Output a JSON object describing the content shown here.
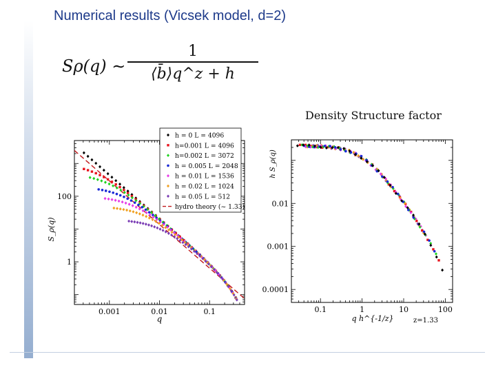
{
  "slide": {
    "title": "Numerical results (Vicsek model, d=2)",
    "formula": {
      "lhs": "Sρ(q) ∼",
      "numerator": "1",
      "denominator": "⟨b̄⟩q^z + h"
    }
  },
  "colors": {
    "title": "#1d3a8a",
    "theory_line": "#c0181a"
  },
  "chart_data": [
    {
      "type": "scatter",
      "title": "",
      "xlabel": "q",
      "ylabel": "S_ρ(q)",
      "xscale": "log",
      "yscale": "log",
      "xlim": [
        0.0002,
        0.5
      ],
      "ylim": [
        0.05,
        5000
      ],
      "xticks": [
        {
          "v": 0.001,
          "label": "0.001"
        },
        {
          "v": 0.01,
          "label": "0.01"
        },
        {
          "v": 0.1,
          "label": "0.1"
        }
      ],
      "yticks": [
        {
          "v": 1,
          "label": "1"
        },
        {
          "v": 100,
          "label": "100"
        }
      ],
      "legend_position": "top-right",
      "series": [
        {
          "name": "h = 0   L = 4096",
          "color": "#000000",
          "h": 0,
          "qmin": 0.00031
        },
        {
          "name": "h=0.001  L = 4096",
          "color": "#e8141e",
          "h": 0.001,
          "qmin": 0.00031
        },
        {
          "name": "h=0.002  L = 3072",
          "color": "#1ed21e",
          "h": 0.002,
          "qmin": 0.00041
        },
        {
          "name": "h = 0.005  L = 2048",
          "color": "#1a2ad6",
          "h": 0.005,
          "qmin": 0.00061
        },
        {
          "name": "h = 0.01  L = 1536",
          "color": "#e63ce6",
          "h": 0.01,
          "qmin": 0.00082
        },
        {
          "name": "h = 0.02  L = 1024",
          "color": "#f0a020",
          "h": 0.02,
          "qmin": 0.00123
        },
        {
          "name": "h = 0.05  L = 512",
          "color": "#7a3cb4",
          "h": 0.05,
          "qmin": 0.00245
        }
      ],
      "theory": {
        "name": "hydro theory  (~ 1.33)",
        "color": "#c0181a",
        "exponent": 1.33
      }
    },
    {
      "type": "scatter",
      "title": "Density Structure factor",
      "xlabel": "q h^{-1/z}",
      "xlabel_note": "z=1.33",
      "ylabel": "h S_ρ(q)",
      "xscale": "log",
      "yscale": "log",
      "xlim": [
        0.02,
        150
      ],
      "ylim": [
        5e-05,
        0.3
      ],
      "xticks": [
        {
          "v": 0.1,
          "label": "0.1"
        },
        {
          "v": 1,
          "label": "1"
        },
        {
          "v": 10,
          "label": "10"
        },
        {
          "v": 100,
          "label": "100"
        }
      ],
      "yticks": [
        {
          "v": 0.0001,
          "label": "0.0001"
        },
        {
          "v": 0.001,
          "label": "0.001"
        },
        {
          "v": 0.01,
          "label": "0.01"
        }
      ],
      "legend_position": "none"
    }
  ]
}
